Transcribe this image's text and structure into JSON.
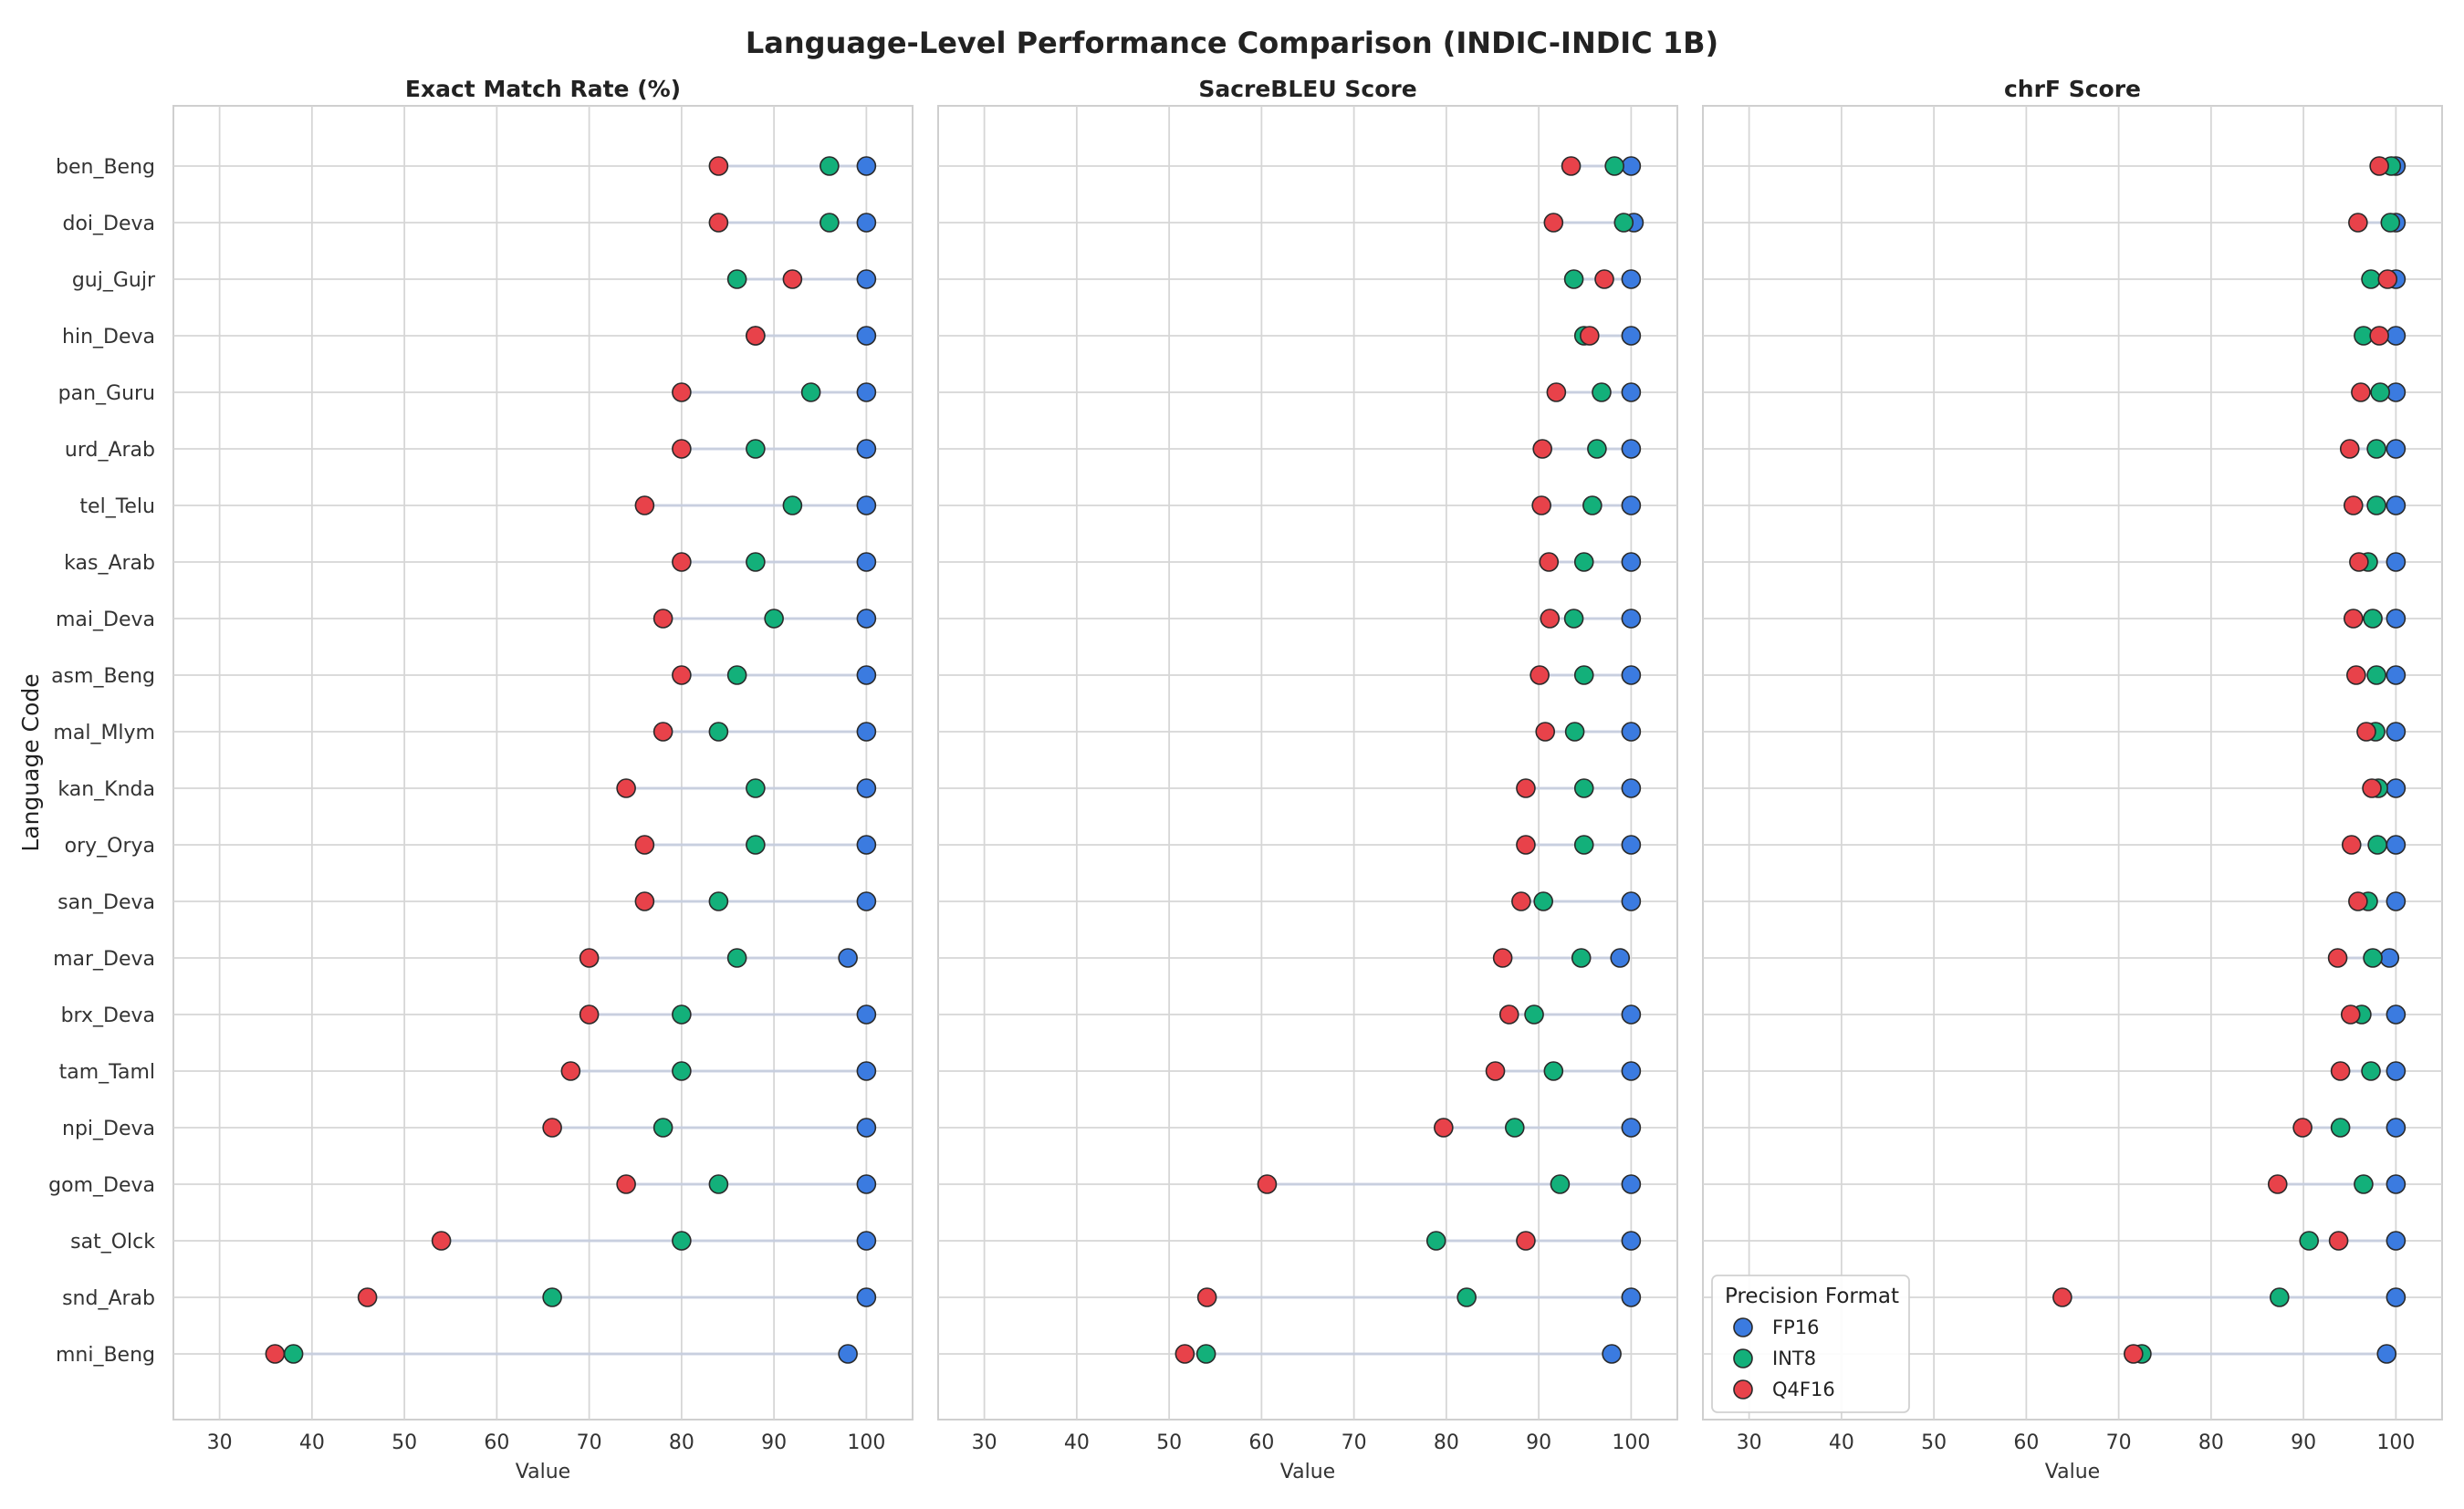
{
  "chart_data": {
    "type": "scatter",
    "title": "Language-Level Performance Comparison (INDIC-INDIC 1B)",
    "ylabel": "Language Code",
    "xlim": [
      25,
      105
    ],
    "xticks": [
      30,
      40,
      50,
      60,
      70,
      80,
      90,
      100
    ],
    "grid": true,
    "legend": {
      "title": "Precision Format",
      "placement": "bottom-left of third panel"
    },
    "colors": {
      "FP16": "#3b7be0",
      "INT8": "#13b07a",
      "Q4F16": "#e8424a"
    },
    "categories": [
      "ben_Beng",
      "doi_Deva",
      "guj_Gujr",
      "hin_Deva",
      "pan_Guru",
      "urd_Arab",
      "tel_Telu",
      "kas_Arab",
      "mai_Deva",
      "asm_Beng",
      "mal_Mlym",
      "kan_Knda",
      "ory_Orya",
      "san_Deva",
      "mar_Deva",
      "brx_Deva",
      "tam_Taml",
      "npi_Deva",
      "gom_Deva",
      "sat_Olck",
      "snd_Arab",
      "mni_Beng"
    ],
    "panels": [
      {
        "title": "Exact Match Rate (%)",
        "xlabel": "Value",
        "series": [
          {
            "name": "FP16",
            "values": [
              100,
              100,
              100,
              100,
              100,
              100,
              100,
              100,
              100,
              100,
              100,
              100,
              100,
              100,
              98,
              100,
              100,
              100,
              100,
              100,
              100,
              98
            ]
          },
          {
            "name": "INT8",
            "values": [
              96,
              96,
              86,
              88,
              94,
              88,
              92,
              88,
              90,
              86,
              84,
              88,
              88,
              84,
              86,
              80,
              80,
              78,
              84,
              80,
              66,
              38
            ]
          },
          {
            "name": "Q4F16",
            "values": [
              84,
              84,
              92,
              88,
              80,
              80,
              76,
              80,
              78,
              80,
              78,
              74,
              76,
              76,
              70,
              70,
              68,
              66,
              74,
              54,
              46,
              36
            ]
          }
        ]
      },
      {
        "title": "SacreBLEU Score",
        "xlabel": "Value",
        "series": [
          {
            "name": "FP16",
            "values": [
              100,
              100.3,
              100,
              100,
              100,
              100,
              100,
              100,
              100,
              100,
              100,
              100,
              100,
              100,
              98.8,
              100,
              100,
              100,
              100,
              100,
              100,
              97.9
            ]
          },
          {
            "name": "INT8",
            "values": [
              98.2,
              99.2,
              93.8,
              94.9,
              96.8,
              96.3,
              95.8,
              94.9,
              93.8,
              94.9,
              93.9,
              94.9,
              94.9,
              90.5,
              94.6,
              89.5,
              91.6,
              87.4,
              92.3,
              78.9,
              82.2,
              54
            ]
          },
          {
            "name": "Q4F16",
            "values": [
              93.5,
              91.6,
              97.1,
              95.5,
              91.9,
              90.4,
              90.3,
              91.1,
              91.2,
              90.1,
              90.7,
              88.6,
              88.6,
              88.1,
              86.1,
              86.8,
              85.3,
              79.7,
              60.6,
              88.6,
              54.1,
              51.7
            ]
          }
        ]
      },
      {
        "title": "chrF Score",
        "xlabel": "Value",
        "series": [
          {
            "name": "FP16",
            "values": [
              100,
              100,
              100,
              100,
              100,
              100,
              100,
              100,
              100,
              100,
              100,
              100,
              100,
              100,
              99.3,
              100,
              100,
              100,
              100,
              100,
              100,
              99
            ]
          },
          {
            "name": "INT8",
            "values": [
              99.5,
              99.4,
              97.3,
              96.5,
              98.3,
              97.9,
              97.9,
              97,
              97.5,
              97.9,
              97.8,
              98.1,
              98,
              97,
              97.5,
              96.3,
              97.3,
              94,
              96.5,
              90.6,
              87.4,
              72.5
            ]
          },
          {
            "name": "Q4F16",
            "values": [
              98.2,
              95.9,
              99.1,
              98.2,
              96.2,
              95,
              95.4,
              96,
              95.4,
              95.7,
              96.8,
              97.4,
              95.2,
              95.9,
              93.7,
              95.1,
              94,
              89.9,
              87.2,
              93.8,
              63.9,
              71.6
            ]
          }
        ]
      }
    ]
  }
}
